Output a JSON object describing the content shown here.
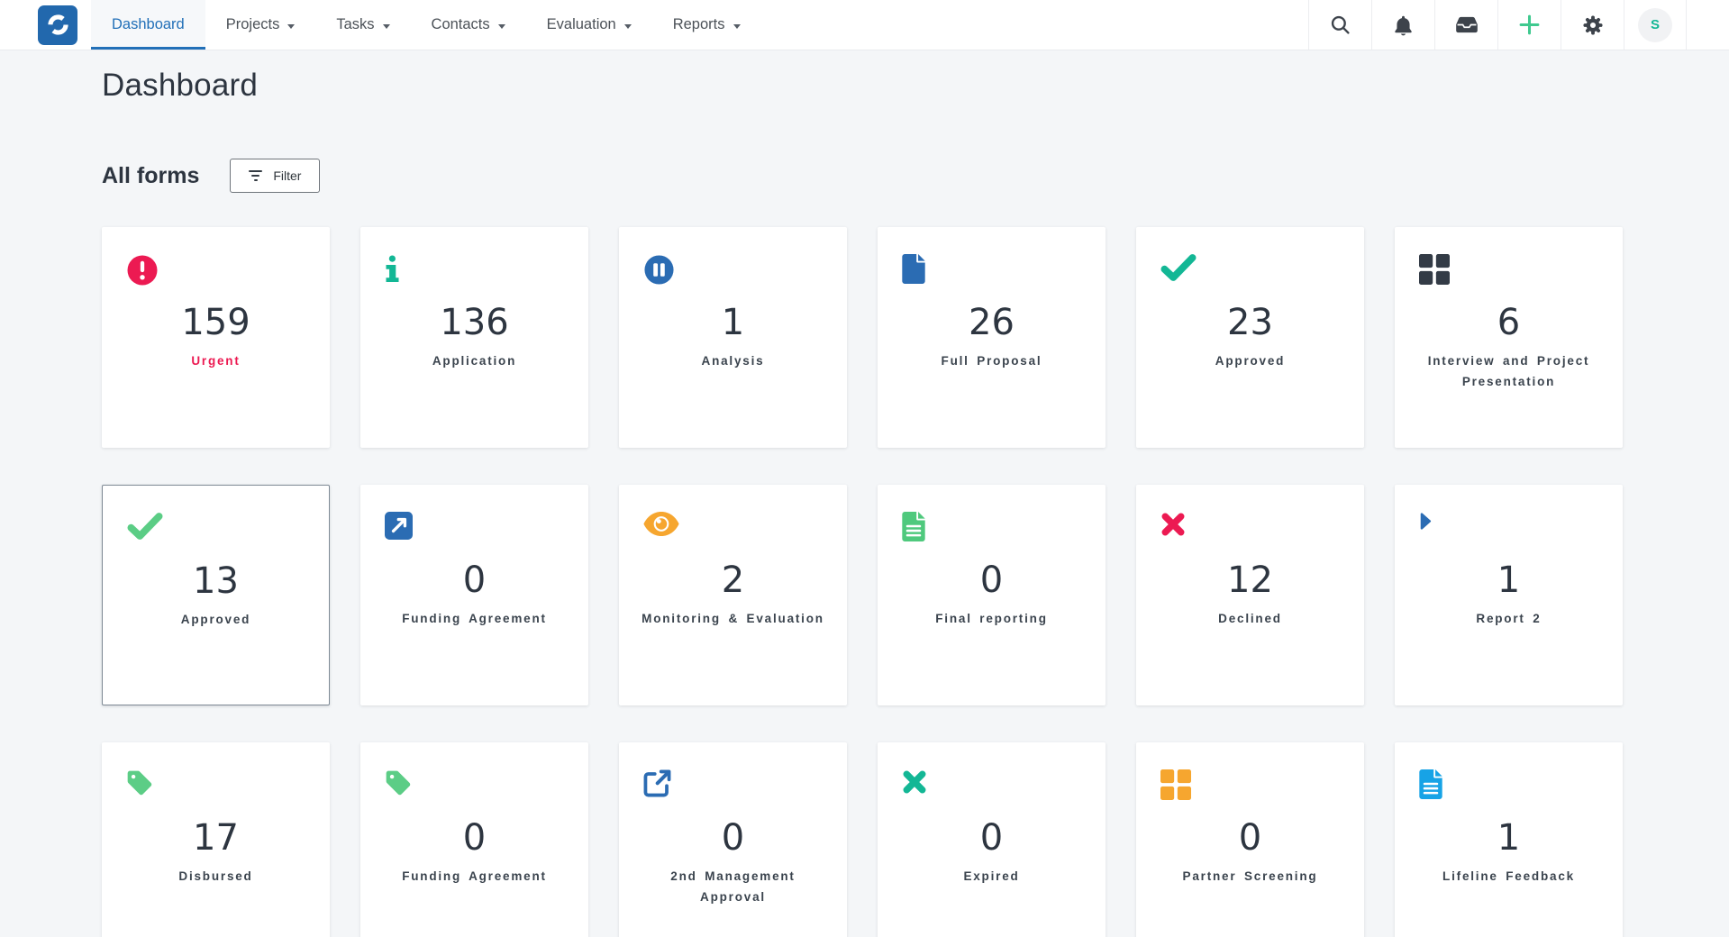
{
  "brand": {
    "primary_blue": "#2270b8",
    "logo_bg": "#2268ad"
  },
  "nav": {
    "items": [
      {
        "label": "Dashboard",
        "active": true,
        "has_dropdown": false
      },
      {
        "label": "Projects",
        "active": false,
        "has_dropdown": true
      },
      {
        "label": "Tasks",
        "active": false,
        "has_dropdown": true
      },
      {
        "label": "Contacts",
        "active": false,
        "has_dropdown": true
      },
      {
        "label": "Evaluation",
        "active": false,
        "has_dropdown": true
      },
      {
        "label": "Reports",
        "active": false,
        "has_dropdown": true
      }
    ],
    "actions": [
      {
        "name": "search",
        "icon": "search"
      },
      {
        "name": "notifications",
        "icon": "bell"
      },
      {
        "name": "inbox",
        "icon": "inbox"
      },
      {
        "name": "add",
        "icon": "plus",
        "color": "#3fc98f"
      },
      {
        "name": "settings",
        "icon": "gear"
      }
    ],
    "avatar": {
      "initial": "S",
      "color": "#14b795",
      "bg": "#f1f2f4"
    }
  },
  "page": {
    "title": "Dashboard",
    "section_title": "All forms",
    "filter_button": "Filter"
  },
  "cards": [
    {
      "value": "159",
      "label": "Urgent",
      "icon": "exclamation-circle",
      "icon_color": "#ec1a52",
      "label_color": "#ec1a52"
    },
    {
      "value": "136",
      "label": "Application",
      "icon": "info",
      "icon_color": "#13b795"
    },
    {
      "value": "1",
      "label": "Analysis",
      "icon": "pause-circle",
      "icon_color": "#2b6cb3"
    },
    {
      "value": "26",
      "label": "Full Proposal",
      "icon": "file",
      "icon_color": "#2b6cb3"
    },
    {
      "value": "23",
      "label": "Approved",
      "icon": "check",
      "icon_color": "#13b795"
    },
    {
      "value": "6",
      "label": "Interview and Project\nPresentation",
      "icon": "grid",
      "icon_color": "#333b46"
    },
    {
      "value": "13",
      "label": "Approved",
      "icon": "check",
      "icon_color": "#5bcd85",
      "selected": true
    },
    {
      "value": "0",
      "label": "Funding Agreement",
      "icon": "external-link-square",
      "icon_color": "#2b6cb3"
    },
    {
      "value": "2",
      "label": "Monitoring & Evaluation",
      "icon": "eye",
      "icon_color": "#f6a62f"
    },
    {
      "value": "0",
      "label": "Final reporting",
      "icon": "file-lines",
      "icon_color": "#4fc97d"
    },
    {
      "value": "12",
      "label": "Declined",
      "icon": "times",
      "icon_color": "#ec1a52"
    },
    {
      "value": "1",
      "label": "Report 2",
      "icon": "caret-right",
      "icon_color": "#2b6cb3"
    },
    {
      "value": "17",
      "label": "Disbursed",
      "icon": "tag",
      "icon_color": "#5ccd86"
    },
    {
      "value": "0",
      "label": "Funding Agreement",
      "icon": "tag",
      "icon_color": "#5ccd86"
    },
    {
      "value": "0",
      "label": "2nd Management\nApproval",
      "icon": "external-link",
      "icon_color": "#2b6cb3"
    },
    {
      "value": "0",
      "label": "Expired",
      "icon": "times",
      "icon_color": "#13b795"
    },
    {
      "value": "0",
      "label": "Partner Screening",
      "icon": "grid",
      "icon_color": "#f6a62f"
    },
    {
      "value": "1",
      "label": "Lifeline Feedback",
      "icon": "file-lines",
      "icon_color": "#17a3e6"
    }
  ]
}
